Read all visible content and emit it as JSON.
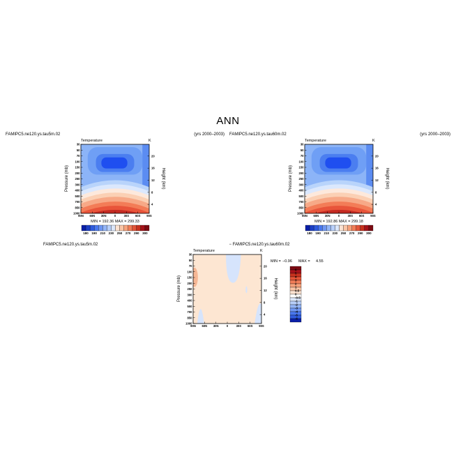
{
  "figure": {
    "title": "ANN",
    "colors": {
      "dark_blue": "#0a1fa8",
      "mid_blue": "#5a8cf4",
      "light_blue": "#a9c8fa",
      "peach": "#fde4cf",
      "orange": "#f57f4e",
      "dark_red": "#a5121a"
    }
  },
  "panels": [
    {
      "case_label": "FAMIPC5.ne120.ys.tau5m.02",
      "years": "(yrs 2000–2003)",
      "var_title": "Temperature",
      "units": "K",
      "ylabel_left": "Pressure (mb)",
      "ylabel_right": "Height (km)",
      "stats": "MIN = 192.36   MAX = 299.33",
      "label_below": "FAMIPC5.ne120.ys.tau5m.02"
    },
    {
      "case_label": "FAMIPC5.ne120.ys.tau60m.02",
      "years": "(yrs 2000–2003)",
      "var_title": "Temperature",
      "units": "K",
      "ylabel_left": "Pressure (mb)",
      "ylabel_right": "Height (km)",
      "stats": "MIN = 192.86   MAX = 299.18"
    }
  ],
  "diff_panel": {
    "title": "− FAMIPC5.ne120.ys.tau60m.02",
    "var_title": "Temperature",
    "units": "K",
    "ylabel_left": "Pressure (mb)",
    "ylabel_right": "Height (km)",
    "min_label": "MIN =",
    "min_value": "−0.96",
    "max_label": "MAX =",
    "max_value": "4.55"
  },
  "chart_data": [
    {
      "type": "heatmap",
      "title": "Temperature",
      "xlabel": "",
      "ylabel": "Pressure (mb)",
      "y2label": "Height (km)",
      "x_ticks": [
        "90N",
        "60N",
        "30N",
        "0",
        "30S",
        "60S",
        "90S"
      ],
      "y_ticks": [
        "30",
        "50",
        "70",
        "100",
        "150",
        "200",
        "250",
        "300",
        "400",
        "500",
        "700",
        "850",
        "1000"
      ],
      "y2_ticks": [
        "20",
        "16",
        "12",
        "8",
        "4"
      ],
      "colorbar_labels": [
        "180",
        "190",
        "210",
        "230",
        "250",
        "270",
        "290",
        "300"
      ],
      "min": 192.36,
      "max": 299.33
    },
    {
      "type": "heatmap",
      "title": "Temperature",
      "xlabel": "",
      "ylabel": "Pressure (mb)",
      "y2label": "Height (km)",
      "x_ticks": [
        "90N",
        "60N",
        "30N",
        "0",
        "30S",
        "60S",
        "90S"
      ],
      "y_ticks": [
        "30",
        "50",
        "70",
        "100",
        "150",
        "200",
        "250",
        "300",
        "400",
        "500",
        "700",
        "850",
        "1000"
      ],
      "y2_ticks": [
        "20",
        "16",
        "12",
        "8",
        "4"
      ],
      "colorbar_labels": [
        "180",
        "190",
        "210",
        "230",
        "250",
        "270",
        "290",
        "300"
      ],
      "min": 192.86,
      "max": 299.18
    },
    {
      "type": "heatmap",
      "title": "Temperature",
      "xlabel": "",
      "ylabel": "Pressure (mb)",
      "y2label": "Height (km)",
      "x_ticks": [
        "90N",
        "60N",
        "30N",
        "0",
        "30S",
        "60S",
        "90S"
      ],
      "y_ticks": [
        "30",
        "50",
        "70",
        "100",
        "150",
        "200",
        "250",
        "300",
        "400",
        "500",
        "700",
        "850",
        "1000"
      ],
      "y2_ticks": [
        "20",
        "16",
        "12",
        "8",
        "4"
      ],
      "colorbar_labels": [
        "6",
        "5",
        "4",
        "3",
        "2",
        "1",
        "0.5",
        "0",
        "-0.5",
        "-1",
        "-2",
        "-3",
        "-4",
        "-5",
        "-6"
      ],
      "min": -0.96,
      "max": 4.55
    }
  ]
}
